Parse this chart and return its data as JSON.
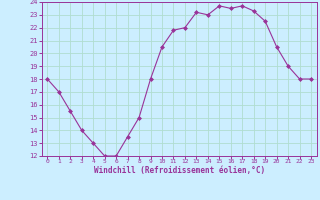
{
  "x": [
    0,
    1,
    2,
    3,
    4,
    5,
    6,
    7,
    8,
    9,
    10,
    11,
    12,
    13,
    14,
    15,
    16,
    17,
    18,
    19,
    20,
    21,
    22,
    23
  ],
  "y": [
    18,
    17,
    15.5,
    14,
    13,
    12,
    12,
    13.5,
    15,
    18,
    20.5,
    21.8,
    22,
    23.2,
    23,
    23.7,
    23.5,
    23.7,
    23.3,
    22.5,
    20.5,
    19,
    18,
    18
  ],
  "line_color": "#993399",
  "marker": "D",
  "marker_size": 2,
  "bg_color": "#cceeff",
  "grid_color": "#aaddcc",
  "xlabel": "Windchill (Refroidissement éolien,°C)",
  "xlabel_color": "#993399",
  "tick_color": "#993399",
  "axis_color": "#993399",
  "ylim": [
    12,
    24
  ],
  "xlim": [
    -0.5,
    23.5
  ],
  "yticks": [
    12,
    13,
    14,
    15,
    16,
    17,
    18,
    19,
    20,
    21,
    22,
    23,
    24
  ],
  "xticks": [
    0,
    1,
    2,
    3,
    4,
    5,
    6,
    7,
    8,
    9,
    10,
    11,
    12,
    13,
    14,
    15,
    16,
    17,
    18,
    19,
    20,
    21,
    22,
    23
  ]
}
